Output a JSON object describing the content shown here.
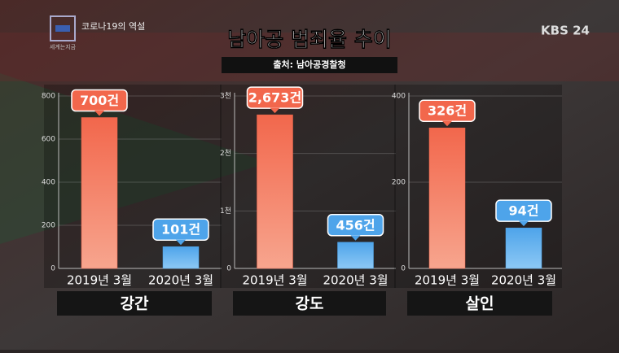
{
  "header": {
    "program": "세계는지금",
    "topic": "코로나19의 역설",
    "channel": "KBS 24",
    "title": "남아공 범죄율 추이",
    "source": "출처: 남아공경찰청"
  },
  "chart_data": [
    {
      "type": "bar",
      "title": "강간",
      "categories": [
        "2019년 3월",
        "2020년 3월"
      ],
      "values": [
        700,
        101
      ],
      "value_labels": [
        "700건",
        "101건"
      ],
      "colors": [
        "#f2674c",
        "#4ea4ea"
      ],
      "ylim": [
        0,
        800
      ],
      "yticks": [
        0,
        200,
        400,
        600,
        800
      ],
      "grid": true
    },
    {
      "type": "bar",
      "title": "강도",
      "categories": [
        "2019년 3월",
        "2020년 3월"
      ],
      "values": [
        2673,
        456
      ],
      "value_labels": [
        "2,673건",
        "456건"
      ],
      "colors": [
        "#f2674c",
        "#4ea4ea"
      ],
      "ylim": [
        0,
        3000
      ],
      "yticks": [
        0,
        {
          "value": 1000,
          "label": "1천"
        },
        {
          "value": 2000,
          "label": "2천"
        },
        {
          "value": 3000,
          "label": "3천"
        }
      ],
      "grid": true
    },
    {
      "type": "bar",
      "title": "살인",
      "categories": [
        "2019년 3월",
        "2020년 3월"
      ],
      "values": [
        326,
        94
      ],
      "value_labels": [
        "326건",
        "94건"
      ],
      "colors": [
        "#f2674c",
        "#4ea4ea"
      ],
      "ylim": [
        0,
        400
      ],
      "yticks": [
        0,
        200,
        400
      ],
      "grid": true
    }
  ]
}
